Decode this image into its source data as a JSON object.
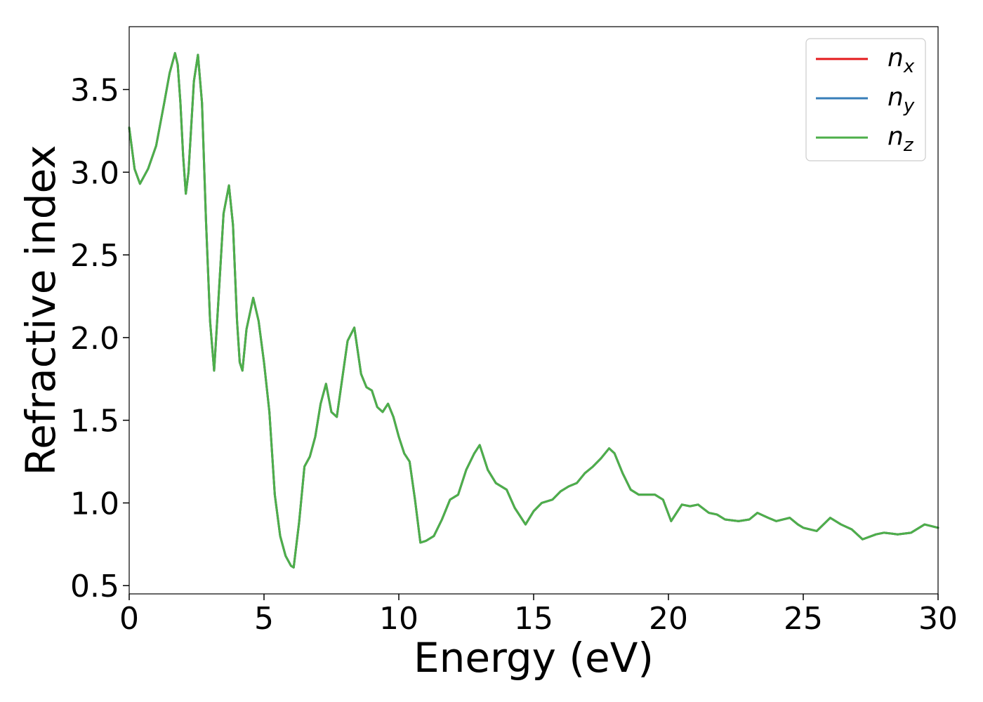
{
  "chart_data": {
    "type": "line",
    "title": "",
    "xlabel": "Energy (eV)",
    "ylabel": "Refractive index",
    "xlim": [
      0,
      30
    ],
    "ylim": [
      0.45,
      3.88
    ],
    "xticks": [
      0,
      5,
      10,
      15,
      20,
      25,
      30
    ],
    "xtick_labels": [
      "0",
      "5",
      "10",
      "15",
      "20",
      "25",
      "30"
    ],
    "yticks": [
      0.5,
      1.0,
      1.5,
      2.0,
      2.5,
      3.0,
      3.5
    ],
    "ytick_labels": [
      "0.5",
      "1.0",
      "1.5",
      "2.0",
      "2.5",
      "3.0",
      "3.5"
    ],
    "grid": false,
    "legend_position": "top-right",
    "x": [
      0.0,
      0.2,
      0.4,
      0.7,
      1.0,
      1.3,
      1.5,
      1.7,
      1.8,
      1.9,
      2.0,
      2.1,
      2.2,
      2.4,
      2.55,
      2.7,
      2.85,
      3.0,
      3.15,
      3.3,
      3.5,
      3.7,
      3.85,
      4.0,
      4.1,
      4.2,
      4.35,
      4.6,
      4.8,
      5.0,
      5.2,
      5.4,
      5.6,
      5.8,
      6.0,
      6.1,
      6.3,
      6.5,
      6.7,
      6.9,
      7.1,
      7.3,
      7.5,
      7.7,
      7.9,
      8.1,
      8.35,
      8.6,
      8.8,
      9.0,
      9.2,
      9.4,
      9.6,
      9.8,
      10.0,
      10.2,
      10.4,
      10.6,
      10.8,
      11.0,
      11.3,
      11.6,
      11.9,
      12.2,
      12.5,
      12.8,
      13.0,
      13.3,
      13.6,
      14.0,
      14.3,
      14.7,
      15.0,
      15.3,
      15.7,
      16.0,
      16.3,
      16.6,
      16.9,
      17.2,
      17.5,
      17.8,
      18.0,
      18.3,
      18.6,
      18.9,
      19.2,
      19.5,
      19.8,
      20.1,
      20.5,
      20.8,
      21.1,
      21.5,
      21.8,
      22.1,
      22.6,
      23.0,
      23.3,
      23.7,
      24.0,
      24.5,
      24.8,
      25.0,
      25.5,
      26.0,
      26.4,
      26.8,
      27.2,
      27.7,
      28.0,
      28.5,
      29.0,
      29.5,
      30.0
    ],
    "series": [
      {
        "name": "n_x",
        "name_base": "n",
        "name_sub": "x",
        "color": "#e41a1c"
      },
      {
        "name": "n_y",
        "name_base": "n",
        "name_sub": "y",
        "color": "#377eb8"
      },
      {
        "name": "n_z",
        "name_base": "n",
        "name_sub": "z",
        "color": "#4daf4a"
      }
    ],
    "y": [
      3.27,
      3.02,
      2.93,
      3.02,
      3.16,
      3.42,
      3.6,
      3.72,
      3.65,
      3.42,
      3.1,
      2.87,
      3.0,
      3.55,
      3.71,
      3.42,
      2.7,
      2.1,
      1.8,
      2.2,
      2.75,
      2.92,
      2.68,
      2.1,
      1.85,
      1.8,
      2.05,
      2.24,
      2.1,
      1.85,
      1.55,
      1.05,
      0.8,
      0.68,
      0.62,
      0.61,
      0.88,
      1.22,
      1.28,
      1.4,
      1.6,
      1.72,
      1.55,
      1.52,
      1.75,
      1.98,
      2.06,
      1.78,
      1.7,
      1.68,
      1.58,
      1.55,
      1.6,
      1.52,
      1.4,
      1.3,
      1.25,
      1.02,
      0.76,
      0.77,
      0.8,
      0.9,
      1.02,
      1.05,
      1.2,
      1.3,
      1.35,
      1.2,
      1.12,
      1.08,
      0.97,
      0.87,
      0.95,
      1.0,
      1.02,
      1.07,
      1.1,
      1.12,
      1.18,
      1.22,
      1.27,
      1.33,
      1.3,
      1.18,
      1.08,
      1.05,
      1.05,
      1.05,
      1.02,
      0.89,
      0.99,
      0.98,
      0.99,
      0.94,
      0.93,
      0.9,
      0.89,
      0.9,
      0.94,
      0.91,
      0.89,
      0.91,
      0.87,
      0.85,
      0.83,
      0.91,
      0.87,
      0.84,
      0.78,
      0.81,
      0.82,
      0.81,
      0.82,
      0.87,
      0.85
    ]
  }
}
